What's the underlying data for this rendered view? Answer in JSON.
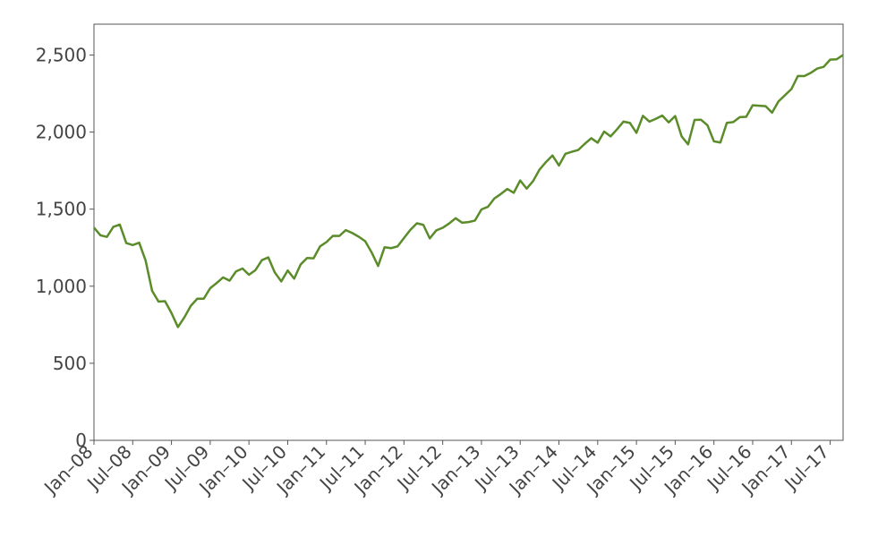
{
  "chart_data": {
    "type": "line",
    "x": [
      "2008-01",
      "2008-02",
      "2008-03",
      "2008-04",
      "2008-05",
      "2008-06",
      "2008-07",
      "2008-08",
      "2008-09",
      "2008-10",
      "2008-11",
      "2008-12",
      "2009-01",
      "2009-02",
      "2009-03",
      "2009-04",
      "2009-05",
      "2009-06",
      "2009-07",
      "2009-08",
      "2009-09",
      "2009-10",
      "2009-11",
      "2009-12",
      "2010-01",
      "2010-02",
      "2010-03",
      "2010-04",
      "2010-05",
      "2010-06",
      "2010-07",
      "2010-08",
      "2010-09",
      "2010-10",
      "2010-11",
      "2010-12",
      "2011-01",
      "2011-02",
      "2011-03",
      "2011-04",
      "2011-05",
      "2011-06",
      "2011-07",
      "2011-08",
      "2011-09",
      "2011-10",
      "2011-11",
      "2011-12",
      "2012-01",
      "2012-02",
      "2012-03",
      "2012-04",
      "2012-05",
      "2012-06",
      "2012-07",
      "2012-08",
      "2012-09",
      "2012-10",
      "2012-11",
      "2012-12",
      "2013-01",
      "2013-02",
      "2013-03",
      "2013-04",
      "2013-05",
      "2013-06",
      "2013-07",
      "2013-08",
      "2013-09",
      "2013-10",
      "2013-11",
      "2013-12",
      "2014-01",
      "2014-02",
      "2014-03",
      "2014-04",
      "2014-05",
      "2014-06",
      "2014-07",
      "2014-08",
      "2014-09",
      "2014-10",
      "2014-11",
      "2014-12",
      "2015-01",
      "2015-02",
      "2015-03",
      "2015-04",
      "2015-05",
      "2015-06",
      "2015-07",
      "2015-08",
      "2015-09",
      "2015-10",
      "2015-11",
      "2015-12",
      "2016-01",
      "2016-02",
      "2016-03",
      "2016-04",
      "2016-05",
      "2016-06",
      "2016-07",
      "2016-08",
      "2016-09",
      "2016-10",
      "2016-11",
      "2016-12",
      "2017-01",
      "2017-02",
      "2017-03",
      "2017-04",
      "2017-05",
      "2017-06",
      "2017-07",
      "2017-08",
      "2017-09"
    ],
    "series": [
      {
        "color": "#5b8c2a",
        "values": [
          1380,
          1330,
          1320,
          1385,
          1400,
          1280,
          1267,
          1282,
          1166,
          970,
          900,
          903,
          826,
          735,
          798,
          873,
          919,
          919,
          987,
          1021,
          1057,
          1036,
          1096,
          1115,
          1074,
          1104,
          1169,
          1187,
          1089,
          1031,
          1102,
          1049,
          1141,
          1183,
          1181,
          1258,
          1286,
          1327,
          1326,
          1364,
          1345,
          1321,
          1292,
          1219,
          1131,
          1253,
          1247,
          1258,
          1312,
          1366,
          1408,
          1398,
          1310,
          1362,
          1379,
          1407,
          1441,
          1412,
          1416,
          1426,
          1498,
          1515,
          1569,
          1598,
          1631,
          1606,
          1686,
          1633,
          1682,
          1757,
          1806,
          1848,
          1783,
          1859,
          1872,
          1884,
          1924,
          1960,
          1931,
          2003,
          1972,
          2018,
          2068,
          2059,
          1995,
          2105,
          2068,
          2086,
          2107,
          2063,
          2104,
          1972,
          1920,
          2079,
          2080,
          2044,
          1940,
          1932,
          2060,
          2065,
          2097,
          2099,
          2174,
          2171,
          2168,
          2126,
          2199,
          2239,
          2279,
          2364,
          2363,
          2384,
          2412,
          2423,
          2470,
          2472,
          2500
        ]
      }
    ],
    "xlim": [
      "2008-01",
      "2017-09"
    ],
    "xticks": [
      {
        "value": "2008-01",
        "label": "Jan–08"
      },
      {
        "value": "2008-07",
        "label": "Jul–08"
      },
      {
        "value": "2009-01",
        "label": "Jan–09"
      },
      {
        "value": "2009-07",
        "label": "Jul–09"
      },
      {
        "value": "2010-01",
        "label": "Jan–10"
      },
      {
        "value": "2010-07",
        "label": "Jul–10"
      },
      {
        "value": "2011-01",
        "label": "Jan–11"
      },
      {
        "value": "2011-07",
        "label": "Jul–11"
      },
      {
        "value": "2012-01",
        "label": "Jan–12"
      },
      {
        "value": "2012-07",
        "label": "Jul–12"
      },
      {
        "value": "2013-01",
        "label": "Jan–13"
      },
      {
        "value": "2013-07",
        "label": "Jul–13"
      },
      {
        "value": "2014-01",
        "label": "Jan–14"
      },
      {
        "value": "2014-07",
        "label": "Jul–14"
      },
      {
        "value": "2015-01",
        "label": "Jan–15"
      },
      {
        "value": "2015-07",
        "label": "Jul–15"
      },
      {
        "value": "2016-01",
        "label": "Jan–16"
      },
      {
        "value": "2016-07",
        "label": "Jul–16"
      },
      {
        "value": "2017-01",
        "label": "Jan–17"
      },
      {
        "value": "2017-07",
        "label": "Jul–17"
      }
    ],
    "ylim": [
      0,
      2700
    ],
    "yticks": [
      0,
      500,
      {
        "value": 1000,
        "label": "1,000"
      },
      {
        "value": 1500,
        "label": "1,500"
      },
      {
        "value": 2000,
        "label": "2,000"
      },
      {
        "value": 2500,
        "label": "2,500"
      }
    ]
  }
}
